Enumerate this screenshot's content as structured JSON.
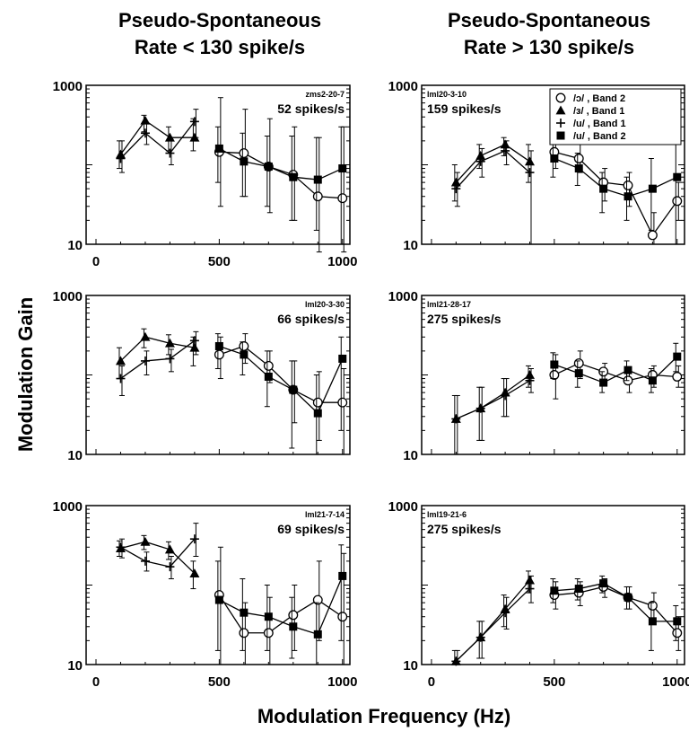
{
  "figure": {
    "col_titles": [
      [
        "Pseudo-Spontaneous",
        "Rate < 130 spike/s"
      ],
      [
        "Pseudo-Spontaneous",
        "Rate > 130 spike/s"
      ]
    ],
    "ylabel": "Modulation Gain",
    "xlabel": "Modulation Frequency (Hz)",
    "legend": [
      "/ɔ/ , Band 2",
      "/ɜ/ , Band 1",
      "/u/ , Band 1",
      "/u/ , Band 2"
    ]
  },
  "chart_data": [
    {
      "type": "line",
      "panel": "top-left",
      "unit_id": "zms2-20-7",
      "rate": "52 spikes/s",
      "yscale": "log",
      "ylim": [
        10,
        1000
      ],
      "yticks": [
        "1000",
        "10"
      ],
      "xlim": [
        -40,
        1030
      ],
      "xticks": [
        "0",
        "500",
        "1000"
      ],
      "series": [
        {
          "name": "/ɔ/ , Band 2",
          "marker": "open-circle",
          "x": [
            500,
            600,
            700,
            800,
            900,
            1000
          ],
          "y": [
            145,
            140,
            95,
            75,
            40,
            38
          ],
          "err": [
            [
              30,
              700
            ],
            [
              40,
              500
            ],
            [
              25,
              380
            ],
            [
              20,
              300
            ],
            [
              8,
              220
            ],
            [
              8,
              300
            ]
          ]
        },
        {
          "name": "/ɜ/ , Band 1",
          "marker": "triangle",
          "x": [
            100,
            200,
            300,
            400
          ],
          "y": [
            135,
            360,
            220,
            220
          ],
          "err": [
            [
              90,
              200
            ],
            [
              260,
              420
            ],
            [
              150,
              300
            ],
            [
              150,
              380
            ]
          ]
        },
        {
          "name": "/u/ , Band 1",
          "marker": "plus",
          "x": [
            100,
            200,
            300,
            400
          ],
          "y": [
            120,
            250,
            140,
            350
          ],
          "err": [
            [
              80,
              200
            ],
            [
              180,
              330
            ],
            [
              100,
              200
            ],
            [
              220,
              500
            ]
          ]
        },
        {
          "name": "/u/ , Band 2",
          "marker": "square",
          "x": [
            500,
            600,
            700,
            800,
            900,
            1000
          ],
          "y": [
            160,
            110,
            95,
            70,
            65,
            90
          ],
          "err": [
            [
              60,
              300
            ],
            [
              40,
              250
            ],
            [
              30,
              230
            ],
            [
              20,
              230
            ],
            [
              15,
              220
            ],
            [
              10,
              300
            ]
          ]
        }
      ]
    },
    {
      "type": "line",
      "panel": "top-right",
      "unit_id": "lml20-3-10",
      "rate": "159 spikes/s",
      "yscale": "log",
      "ylim": [
        10,
        1000
      ],
      "yticks": [
        "1000",
        "10"
      ],
      "xlim": [
        -40,
        1030
      ],
      "xticks": [],
      "series": [
        {
          "name": "/ɔ/ , Band 2",
          "marker": "open-circle",
          "x": [
            500,
            600,
            700,
            800,
            900,
            1000
          ],
          "y": [
            145,
            120,
            60,
            55,
            13,
            35
          ],
          "err": [
            [
              90,
              220
            ],
            [
              80,
              180
            ],
            [
              35,
              90
            ],
            [
              30,
              80
            ],
            [
              10,
              25
            ],
            [
              20,
              60
            ]
          ]
        },
        {
          "name": "/ɜ/ , Band 1",
          "marker": "triangle",
          "x": [
            100,
            200,
            300,
            400
          ],
          "y": [
            60,
            130,
            180,
            110
          ],
          "err": [
            [
              35,
              100
            ],
            [
              90,
              180
            ],
            [
              130,
              220
            ],
            [
              60,
              180
            ]
          ]
        },
        {
          "name": "/u/ , Band 1",
          "marker": "plus",
          "x": [
            100,
            200,
            300,
            400
          ],
          "y": [
            50,
            110,
            150,
            80
          ],
          "err": [
            [
              30,
              80
            ],
            [
              70,
              160
            ],
            [
              100,
              200
            ],
            [
              10,
              150
            ]
          ]
        },
        {
          "name": "/u/ , Band 2",
          "marker": "square",
          "x": [
            500,
            600,
            700,
            800,
            900,
            1000
          ],
          "y": [
            120,
            90,
            50,
            40,
            50,
            70
          ],
          "err": [
            [
              70,
              190
            ],
            [
              55,
              140
            ],
            [
              25,
              80
            ],
            [
              20,
              70
            ],
            [
              15,
              120
            ],
            [
              10,
              180
            ]
          ]
        }
      ]
    },
    {
      "type": "line",
      "panel": "middle-left",
      "unit_id": "lml20-3-30",
      "rate": "66 spikes/s",
      "yscale": "log",
      "ylim": [
        10,
        1000
      ],
      "yticks": [
        "1000",
        "10"
      ],
      "xlim": [
        -40,
        1030
      ],
      "xticks": [],
      "series": [
        {
          "name": "/ɔ/ , Band 2",
          "marker": "open-circle",
          "x": [
            500,
            600,
            700,
            800,
            900,
            1000
          ],
          "y": [
            180,
            230,
            130,
            65,
            45,
            45
          ],
          "err": [
            [
              90,
              300
            ],
            [
              140,
              330
            ],
            [
              80,
              200
            ],
            [
              25,
              150
            ],
            [
              15,
              110
            ],
            [
              10,
              120
            ]
          ]
        },
        {
          "name": "/ɜ/ , Band 1",
          "marker": "triangle",
          "x": [
            100,
            200,
            300,
            400
          ],
          "y": [
            150,
            300,
            250,
            220
          ],
          "err": [
            [
              90,
              220
            ],
            [
              220,
              380
            ],
            [
              180,
              320
            ],
            [
              130,
              300
            ]
          ]
        },
        {
          "name": "/u/ , Band 1",
          "marker": "plus",
          "x": [
            100,
            200,
            300,
            400
          ],
          "y": [
            90,
            150,
            160,
            270
          ],
          "err": [
            [
              55,
              130
            ],
            [
              100,
              200
            ],
            [
              110,
              210
            ],
            [
              180,
              350
            ]
          ]
        },
        {
          "name": "/u/ , Band 2",
          "marker": "square",
          "x": [
            500,
            600,
            700,
            800,
            900,
            1000
          ],
          "y": [
            230,
            180,
            95,
            65,
            33,
            160
          ],
          "err": [
            [
              120,
              330
            ],
            [
              100,
              260
            ],
            [
              40,
              200
            ],
            [
              12,
              150
            ],
            [
              10,
              100
            ],
            [
              20,
              300
            ]
          ]
        }
      ]
    },
    {
      "type": "line",
      "panel": "middle-right",
      "unit_id": "lml21-28-17",
      "rate": "275 spikes/s",
      "yscale": "log",
      "ylim": [
        10,
        1000
      ],
      "yticks": [
        "1000",
        "10"
      ],
      "xlim": [
        -40,
        1030
      ],
      "xticks": [],
      "series": [
        {
          "name": "/ɔ/ , Band 2",
          "marker": "open-circle",
          "x": [
            500,
            600,
            700,
            800,
            900,
            1000
          ],
          "y": [
            100,
            140,
            110,
            85,
            100,
            95
          ],
          "err": [
            [
              50,
              180
            ],
            [
              90,
              200
            ],
            [
              80,
              140
            ],
            [
              60,
              110
            ],
            [
              70,
              130
            ],
            [
              70,
              130
            ]
          ]
        },
        {
          "name": "/ɜ/ , Band 1",
          "marker": "triangle",
          "x": [
            100,
            200,
            300,
            400
          ],
          "y": [
            28,
            38,
            60,
            100
          ],
          "err": [
            [
              10,
              55
            ],
            [
              15,
              70
            ],
            [
              30,
              90
            ],
            [
              70,
              130
            ]
          ]
        },
        {
          "name": "/u/ , Band 1",
          "marker": "plus",
          "x": [
            100,
            200,
            300,
            400
          ],
          "y": [
            28,
            38,
            55,
            85
          ],
          "err": [
            [
              10,
              55
            ],
            [
              15,
              70
            ],
            [
              30,
              90
            ],
            [
              60,
              120
            ]
          ]
        },
        {
          "name": "/u/ , Band 2",
          "marker": "square",
          "x": [
            500,
            600,
            700,
            800,
            900,
            1000
          ],
          "y": [
            135,
            105,
            80,
            115,
            85,
            170
          ],
          "err": [
            [
              90,
              190
            ],
            [
              70,
              150
            ],
            [
              60,
              110
            ],
            [
              85,
              150
            ],
            [
              60,
              120
            ],
            [
              110,
              250
            ]
          ]
        }
      ]
    },
    {
      "type": "line",
      "panel": "bottom-left",
      "unit_id": "lml21-7-14",
      "rate": "69 spikes/s",
      "yscale": "log",
      "ylim": [
        10,
        1000
      ],
      "yticks": [
        "1000",
        "10"
      ],
      "xlim": [
        -40,
        1030
      ],
      "xticks": [
        "0",
        "500",
        "1000"
      ],
      "series": [
        {
          "name": "/ɔ/ , Band 2",
          "marker": "open-circle",
          "x": [
            500,
            600,
            700,
            800,
            900,
            1000
          ],
          "y": [
            75,
            25,
            25,
            42,
            65,
            40
          ],
          "err": [
            [
              10,
              300
            ],
            [
              10,
              60
            ],
            [
              10,
              70
            ],
            [
              15,
              100
            ],
            [
              20,
              200
            ],
            [
              10,
              250
            ]
          ]
        },
        {
          "name": "/ɜ/ , Band 1",
          "marker": "triangle",
          "x": [
            100,
            200,
            300,
            400
          ],
          "y": [
            290,
            350,
            280,
            140
          ],
          "err": [
            [
              230,
              360
            ],
            [
              280,
              420
            ],
            [
              210,
              350
            ],
            [
              90,
              200
            ]
          ]
        },
        {
          "name": "/u/ , Band 1",
          "marker": "plus",
          "x": [
            100,
            200,
            300,
            400
          ],
          "y": [
            300,
            200,
            170,
            380
          ],
          "err": [
            [
              220,
              380
            ],
            [
              150,
              260
            ],
            [
              120,
              230
            ],
            [
              230,
              600
            ]
          ]
        },
        {
          "name": "/u/ , Band 2",
          "marker": "square",
          "x": [
            500,
            600,
            700,
            800,
            900,
            1000
          ],
          "y": [
            65,
            45,
            40,
            30,
            24,
            130
          ],
          "err": [
            [
              15,
              200
            ],
            [
              15,
              120
            ],
            [
              15,
              100
            ],
            [
              12,
              70
            ],
            [
              10,
              60
            ],
            [
              20,
              320
            ]
          ]
        }
      ]
    },
    {
      "type": "line",
      "panel": "bottom-right",
      "unit_id": "lml19-21-6",
      "rate": "275 spikes/s",
      "yscale": "log",
      "ylim": [
        10,
        1000
      ],
      "yticks": [
        "1000",
        "10"
      ],
      "xlim": [
        -40,
        1030
      ],
      "xticks": [
        "0",
        "500",
        "1000"
      ],
      "series": [
        {
          "name": "/ɔ/ , Band 2",
          "marker": "open-circle",
          "x": [
            500,
            600,
            700,
            800,
            900,
            1000
          ],
          "y": [
            75,
            80,
            95,
            70,
            55,
            25
          ],
          "err": [
            [
              50,
              110
            ],
            [
              55,
              110
            ],
            [
              70,
              120
            ],
            [
              50,
              95
            ],
            [
              35,
              80
            ],
            [
              15,
              40
            ]
          ]
        },
        {
          "name": "/ɜ/ , Band 1",
          "marker": "triangle",
          "x": [
            100,
            200,
            300,
            400
          ],
          "y": [
            11,
            22,
            50,
            115
          ],
          "err": [
            [
              10,
              15
            ],
            [
              12,
              35
            ],
            [
              30,
              75
            ],
            [
              80,
              150
            ]
          ]
        },
        {
          "name": "/u/ , Band 1",
          "marker": "plus",
          "x": [
            100,
            200,
            300,
            400
          ],
          "y": [
            11,
            22,
            45,
            90
          ],
          "err": [
            [
              10,
              15
            ],
            [
              12,
              35
            ],
            [
              28,
              70
            ],
            [
              60,
              130
            ]
          ]
        },
        {
          "name": "/u/ , Band 2",
          "marker": "square",
          "x": [
            500,
            600,
            700,
            800,
            900,
            1000
          ],
          "y": [
            85,
            90,
            105,
            70,
            35,
            35
          ],
          "err": [
            [
              60,
              120
            ],
            [
              65,
              120
            ],
            [
              80,
              130
            ],
            [
              50,
              95
            ],
            [
              15,
              60
            ],
            [
              20,
              55
            ]
          ]
        }
      ]
    }
  ]
}
